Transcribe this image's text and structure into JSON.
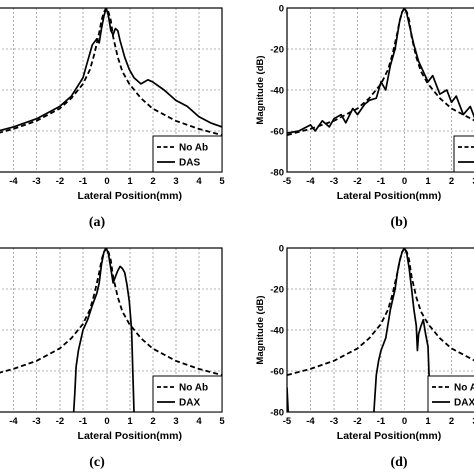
{
  "chart_data": [
    {
      "id": "a",
      "type": "line",
      "caption": "(a)",
      "xlabel": "Lateral Position(mm)",
      "ylabel": "",
      "xlim": [
        -5,
        5
      ],
      "ylim": [
        -80,
        0
      ],
      "xticks": [
        "-4",
        "-3",
        "-2",
        "-1",
        "0",
        "1",
        "2",
        "3",
        "4",
        "5"
      ],
      "yticks": [],
      "grid": true,
      "legend_position": "bottom-right",
      "series": [
        {
          "name": "No Ab",
          "style": "dashed",
          "x": [
            -5,
            -4,
            -3,
            -2,
            -1.5,
            -1,
            -0.7,
            -0.5,
            -0.3,
            -0.2,
            -0.1,
            0,
            0.1,
            0.2,
            0.3,
            0.5,
            0.7,
            1,
            1.5,
            2,
            3,
            4,
            5
          ],
          "y": [
            -62,
            -59,
            -55,
            -49,
            -44,
            -37,
            -30,
            -22,
            -12,
            -6,
            -2,
            0,
            -2,
            -6,
            -14,
            -24,
            -31,
            -37,
            -44,
            -49,
            -55,
            -59,
            -62
          ]
        },
        {
          "name": "DAS",
          "style": "solid",
          "x": [
            -5,
            -4,
            -3,
            -2,
            -1.5,
            -1,
            -0.8,
            -0.6,
            -0.4,
            -0.3,
            -0.2,
            -0.1,
            0,
            0.1,
            0.2,
            0.3,
            0.4,
            0.5,
            0.6,
            0.8,
            1,
            1.2,
            1.5,
            1.8,
            2,
            2.5,
            3,
            3.5,
            4,
            4.5,
            5
          ],
          "y": [
            -61,
            -58,
            -54,
            -48,
            -43,
            -34,
            -26,
            -18,
            -15,
            -17,
            -10,
            -4,
            0,
            -4,
            -11,
            -13,
            -10,
            -11,
            -16,
            -24,
            -30,
            -34,
            -37,
            -35,
            -36,
            -40,
            -45,
            -48,
            -53,
            -56,
            -58
          ]
        }
      ]
    },
    {
      "id": "b",
      "type": "line",
      "caption": "(b)",
      "xlabel": "Lateral Position(mm)",
      "ylabel": "Magnitude (dB)",
      "xlim": [
        -5,
        3.3
      ],
      "ylim": [
        -80,
        0
      ],
      "xticks": [
        "-5",
        "-4",
        "-3",
        "-2",
        "-1",
        "0",
        "1",
        "2",
        "3"
      ],
      "yticks": [
        "0",
        "-20",
        "-40",
        "-60",
        "-80"
      ],
      "grid": true,
      "legend_position": "bottom-right",
      "series": [
        {
          "name": "",
          "style": "dashed",
          "x": [
            -5,
            -4,
            -3,
            -2,
            -1.5,
            -1,
            -0.7,
            -0.5,
            -0.3,
            -0.2,
            -0.1,
            0,
            0.1,
            0.2,
            0.3,
            0.5,
            0.7,
            1,
            1.5,
            2,
            3,
            3.3
          ],
          "y": [
            -62,
            -59,
            -55,
            -49,
            -44,
            -37,
            -30,
            -22,
            -12,
            -6,
            -2,
            0,
            -2,
            -6,
            -14,
            -24,
            -31,
            -37,
            -44,
            -49,
            -55,
            -57
          ]
        },
        {
          "name": "",
          "style": "solid",
          "x": [
            -5,
            -4.5,
            -4,
            -3.8,
            -3.5,
            -3.2,
            -3,
            -2.7,
            -2.5,
            -2.2,
            -2,
            -1.7,
            -1.5,
            -1.2,
            -1,
            -0.8,
            -0.6,
            -0.4,
            -0.2,
            -0.1,
            0,
            0.1,
            0.2,
            0.4,
            0.6,
            0.8,
            1,
            1.2,
            1.5,
            1.8,
            2,
            2.2,
            2.5,
            2.8,
            3,
            3.3
          ],
          "y": [
            -61,
            -60,
            -57,
            -60,
            -55,
            -58,
            -54,
            -52,
            -56,
            -49,
            -52,
            -47,
            -45,
            -44,
            -36,
            -40,
            -28,
            -20,
            -6,
            -2,
            0,
            -3,
            -8,
            -18,
            -26,
            -31,
            -36,
            -33,
            -42,
            -40,
            -46,
            -43,
            -52,
            -48,
            -54,
            -60
          ]
        }
      ]
    },
    {
      "id": "c",
      "type": "line",
      "caption": "(c)",
      "xlabel": "Lateral Position(mm)",
      "ylabel": "",
      "xlim": [
        -5,
        5
      ],
      "ylim": [
        -80,
        0
      ],
      "xticks": [
        "-4",
        "-3",
        "-2",
        "-1",
        "0",
        "1",
        "2",
        "3",
        "4",
        "5"
      ],
      "yticks": [],
      "grid": true,
      "legend_position": "bottom-right",
      "series": [
        {
          "name": "No Ab",
          "style": "dashed",
          "x": [
            -5,
            -4,
            -3,
            -2,
            -1.5,
            -1,
            -0.7,
            -0.5,
            -0.3,
            -0.2,
            -0.1,
            0,
            0.1,
            0.2,
            0.3,
            0.5,
            0.7,
            1,
            1.5,
            2,
            3,
            4,
            5
          ],
          "y": [
            -62,
            -59,
            -55,
            -49,
            -44,
            -37,
            -30,
            -22,
            -12,
            -6,
            -2,
            0,
            -2,
            -6,
            -14,
            -24,
            -31,
            -37,
            -44,
            -49,
            -55,
            -59,
            -62
          ]
        },
        {
          "name": "DAX",
          "style": "solid",
          "x": [
            -1.4,
            -1.35,
            -1.3,
            -1.2,
            -1.1,
            -1,
            -0.8,
            -0.6,
            -0.4,
            -0.3,
            -0.2,
            -0.1,
            0,
            0.1,
            0.2,
            0.3,
            0.4,
            0.5,
            0.6,
            0.7,
            0.8,
            0.9,
            1,
            1.1,
            1.15,
            1.2
          ],
          "y": [
            -80,
            -70,
            -58,
            -50,
            -45,
            -40,
            -35,
            -28,
            -22,
            -17,
            -8,
            -2,
            0,
            -3,
            -10,
            -17,
            -14,
            -11,
            -9,
            -10,
            -12,
            -18,
            -26,
            -40,
            -60,
            -80
          ]
        }
      ]
    },
    {
      "id": "d",
      "type": "line",
      "caption": "(d)",
      "xlabel": "Lateral Position(mm)",
      "ylabel": "Magnitude (dB)",
      "xlim": [
        -5,
        3.3
      ],
      "ylim": [
        -80,
        0
      ],
      "xticks": [
        "-5",
        "-4",
        "-3",
        "-2",
        "-1",
        "0",
        "1",
        "2",
        "3"
      ],
      "yticks": [
        "0",
        "-20",
        "-40",
        "-60",
        "-80"
      ],
      "grid": true,
      "legend_position": "bottom-right",
      "series": [
        {
          "name": "No Ab",
          "style": "dashed",
          "x": [
            -5,
            -4,
            -3,
            -2,
            -1.5,
            -1,
            -0.7,
            -0.5,
            -0.3,
            -0.2,
            -0.1,
            0,
            0.1,
            0.2,
            0.3,
            0.5,
            0.7,
            1,
            1.5,
            2,
            3,
            3.3
          ],
          "y": [
            -62,
            -59,
            -55,
            -49,
            -44,
            -37,
            -30,
            -22,
            -12,
            -6,
            -2,
            0,
            -2,
            -6,
            -14,
            -24,
            -31,
            -37,
            -44,
            -49,
            -55,
            -57
          ]
        },
        {
          "name": "DAX",
          "style": "solid",
          "x": [
            -1.3,
            -1.2,
            -1.1,
            -1,
            -0.8,
            -0.6,
            -0.4,
            -0.3,
            -0.2,
            -0.1,
            0,
            0.1,
            0.2,
            0.3,
            0.4,
            0.5,
            0.55,
            0.6,
            0.7,
            0.8,
            0.9,
            1,
            1.1
          ],
          "y": [
            -80,
            -62,
            -55,
            -50,
            -44,
            -30,
            -20,
            -12,
            -6,
            -2,
            0,
            -3,
            -10,
            -20,
            -30,
            -38,
            -50,
            -42,
            -38,
            -35,
            -42,
            -48,
            -80
          ]
        },
        {
          "name": "",
          "style": "solid",
          "x": [
            -5,
            -4.95,
            -4.9
          ],
          "y": [
            -68,
            -80,
            -80
          ]
        }
      ]
    }
  ]
}
